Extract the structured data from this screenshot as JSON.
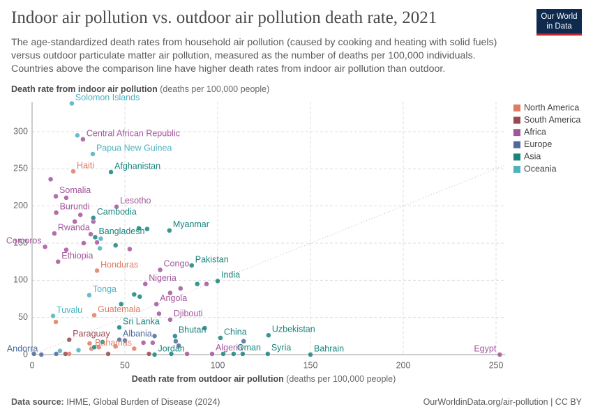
{
  "header": {
    "title": "Indoor air pollution vs. outdoor air pollution death rate, 2021",
    "subtitle": "The age-standardized death rates from household air pollution (caused by cooking and heating with solid fuels) versus outdoor particulate matter air pollution, measured as the number of deaths per 100,000 individuals. Countries above the comparison line have higher death rates from indoor air pollution than outdoor.",
    "logo": [
      "Our World",
      "in Data"
    ]
  },
  "footer": {
    "source_label": "Data source:",
    "source": "IHME, Global Burden of Disease (2024)",
    "url": "OurWorldinData.org/air-pollution | CC BY"
  },
  "chart_data": {
    "type": "scatter",
    "y_label": {
      "bold": "Death rate from indoor air pollution",
      "unit": "(deaths per 100,000 people)"
    },
    "x_label": {
      "bold": "Death rate from outdoor air pollution",
      "unit": "(deaths per 100,000 people)"
    },
    "xlim": [
      0,
      255
    ],
    "ylim": [
      0,
      340
    ],
    "xticks": [
      0,
      50,
      100,
      150,
      200,
      250
    ],
    "yticks": [
      0,
      50,
      100,
      150,
      200,
      250,
      300
    ],
    "grid": true,
    "legend": "right",
    "series": [
      {
        "name": "North America",
        "color": "#e07b62",
        "points": [
          {
            "x": 22.2,
            "y": 246.6,
            "label": "Haiti"
          },
          {
            "x": 35,
            "y": 113,
            "label": "Honduras"
          },
          {
            "x": 33.5,
            "y": 53,
            "label": "Guatemala"
          },
          {
            "x": 32,
            "y": 8,
            "label": "Bahamas"
          },
          {
            "x": 12.8,
            "y": 44
          },
          {
            "x": 31,
            "y": 15
          },
          {
            "x": 36,
            "y": 10
          },
          {
            "x": 55,
            "y": 8
          },
          {
            "x": 45,
            "y": 11
          },
          {
            "x": 20,
            "y": 1
          }
        ]
      },
      {
        "name": "South America",
        "color": "#9a4953",
        "points": [
          {
            "x": 20,
            "y": 20,
            "label": "Paraguay"
          },
          {
            "x": 18,
            "y": 1
          },
          {
            "x": 41,
            "y": 1
          },
          {
            "x": 63,
            "y": 1
          }
        ]
      },
      {
        "name": "Africa",
        "color": "#a2559c",
        "points": [
          {
            "x": 27.4,
            "y": 289.7,
            "label": "Central African Republic"
          },
          {
            "x": 12.8,
            "y": 213,
            "label": "Somalia"
          },
          {
            "x": 13,
            "y": 191,
            "label": "Burundi"
          },
          {
            "x": 45.5,
            "y": 199,
            "label": "Lesotho"
          },
          {
            "x": 12,
            "y": 163,
            "label": "Rwanda"
          },
          {
            "x": 7,
            "y": 145,
            "label": "Comoros"
          },
          {
            "x": 14,
            "y": 125,
            "label": "Ethiopia"
          },
          {
            "x": 69,
            "y": 114,
            "label": "Congo"
          },
          {
            "x": 61,
            "y": 95,
            "label": "Nigeria"
          },
          {
            "x": 67,
            "y": 68,
            "label": "Angola"
          },
          {
            "x": 74.4,
            "y": 47,
            "label": "Djibouti"
          },
          {
            "x": 97,
            "y": 1,
            "label": "Algeria"
          },
          {
            "x": 252,
            "y": 0,
            "label": "Egypt"
          },
          {
            "x": 10,
            "y": 236
          },
          {
            "x": 18.4,
            "y": 211
          },
          {
            "x": 23,
            "y": 179
          },
          {
            "x": 26,
            "y": 188
          },
          {
            "x": 33,
            "y": 179
          },
          {
            "x": 31.6,
            "y": 162
          },
          {
            "x": 18.4,
            "y": 141
          },
          {
            "x": 27.8,
            "y": 150
          },
          {
            "x": 35,
            "y": 151
          },
          {
            "x": 52.6,
            "y": 142
          },
          {
            "x": 80,
            "y": 89
          },
          {
            "x": 74.4,
            "y": 83
          },
          {
            "x": 94,
            "y": 95
          },
          {
            "x": 68.4,
            "y": 55
          },
          {
            "x": 60,
            "y": 16
          },
          {
            "x": 65,
            "y": 16
          },
          {
            "x": 83.5,
            "y": 1
          }
        ]
      },
      {
        "name": "Europe",
        "color": "#4c6a9c",
        "points": [
          {
            "x": 47,
            "y": 20,
            "label": "Albania"
          },
          {
            "x": 5,
            "y": 0,
            "label": "Andorra"
          },
          {
            "x": 77.4,
            "y": 18
          },
          {
            "x": 79,
            "y": 12
          },
          {
            "x": 114,
            "y": 18
          },
          {
            "x": 66,
            "y": 25
          },
          {
            "x": 1,
            "y": 1
          },
          {
            "x": 13,
            "y": 1
          },
          {
            "x": 50,
            "y": 19
          }
        ]
      },
      {
        "name": "Asia",
        "color": "#18847e",
        "points": [
          {
            "x": 42.5,
            "y": 245.6,
            "label": "Afghanistan"
          },
          {
            "x": 33,
            "y": 184,
            "label": "Cambodia"
          },
          {
            "x": 74,
            "y": 167,
            "label": "Myanmar"
          },
          {
            "x": 34,
            "y": 158,
            "label": "Bangladesh"
          },
          {
            "x": 86,
            "y": 120,
            "label": "Pakistan"
          },
          {
            "x": 100,
            "y": 99,
            "label": "India"
          },
          {
            "x": 47,
            "y": 36.6,
            "label": "Sri Lanka"
          },
          {
            "x": 77,
            "y": 25,
            "label": "Bhutan"
          },
          {
            "x": 101.5,
            "y": 22.5,
            "label": "China"
          },
          {
            "x": 127.4,
            "y": 26,
            "label": "Uzbekistan"
          },
          {
            "x": 66,
            "y": 0,
            "label": "Jordan"
          },
          {
            "x": 108.6,
            "y": 1,
            "label": "Oman"
          },
          {
            "x": 127,
            "y": 1,
            "label": "Syria"
          },
          {
            "x": 150,
            "y": 0,
            "label": "Bahrain"
          },
          {
            "x": 57.5,
            "y": 170
          },
          {
            "x": 62,
            "y": 169
          },
          {
            "x": 45,
            "y": 147
          },
          {
            "x": 48,
            "y": 68
          },
          {
            "x": 55,
            "y": 81
          },
          {
            "x": 58,
            "y": 78
          },
          {
            "x": 93,
            "y": 35.6
          },
          {
            "x": 89,
            "y": 95
          },
          {
            "x": 103,
            "y": 1
          },
          {
            "x": 113.5,
            "y": 1
          },
          {
            "x": 33.5,
            "y": 10
          },
          {
            "x": 38,
            "y": 17
          },
          {
            "x": 75,
            "y": 1
          }
        ]
      },
      {
        "name": "Oceania",
        "color": "#4fb2c0",
        "points": [
          {
            "x": 21.4,
            "y": 338,
            "label": "Solomon Islands"
          },
          {
            "x": 32.7,
            "y": 270,
            "label": "Papua New Guinea"
          },
          {
            "x": 30.8,
            "y": 80,
            "label": "Tonga"
          },
          {
            "x": 11.3,
            "y": 52,
            "label": "Tuvalu"
          },
          {
            "x": 24.4,
            "y": 295
          },
          {
            "x": 37,
            "y": 156
          },
          {
            "x": 36.5,
            "y": 143
          },
          {
            "x": 15,
            "y": 5
          },
          {
            "x": 25,
            "y": 6
          }
        ]
      }
    ]
  }
}
